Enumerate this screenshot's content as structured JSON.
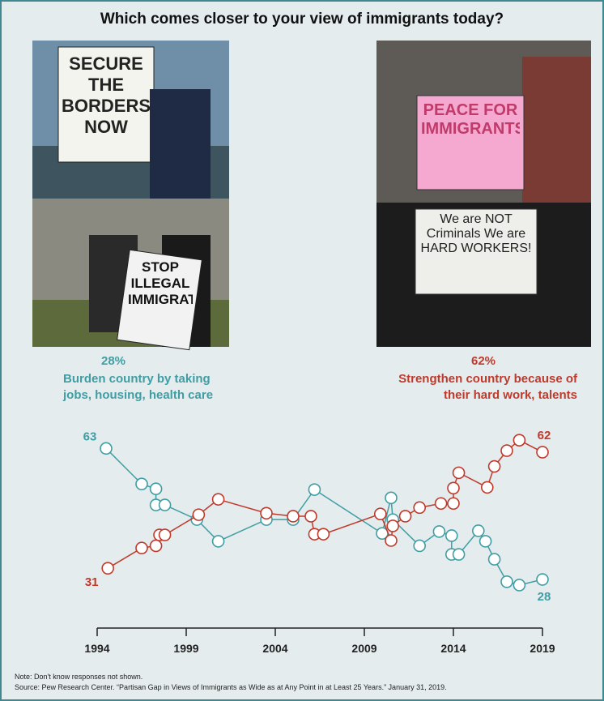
{
  "chart_data": {
    "type": "line",
    "title": "Which comes closer to your view of immigrants today?",
    "photo_signs": [
      "SECURE THE BORDERS NOW",
      "STOP ILLEGAL IMMIGRATION",
      "PEACE FOR IMMIGRANTS",
      "We are NOT Criminals We are HARD WORKERS!"
    ],
    "xlim": [
      1994,
      2019
    ],
    "xticks": [
      1994,
      1999,
      2004,
      2009,
      2014,
      2019
    ],
    "ylim": [
      20,
      70
    ],
    "series": [
      {
        "name": "Burden country by taking jobs, housing, health care",
        "share_label": "28%",
        "color": "#3f9ea3",
        "x": [
          1994.5,
          1996.5,
          1997.3,
          1997.3,
          1997.8,
          1999.6,
          2000.8,
          2003.5,
          2005.0,
          2006.2,
          2010.0,
          2010.5,
          2010.6,
          2012.1,
          2013.2,
          2013.9,
          2013.9,
          2014.3,
          2015.4,
          2015.8,
          2016.3,
          2017.0,
          2017.7,
          2019.0
        ],
        "values": [
          63,
          53.5,
          52.2,
          47.9,
          47.9,
          44,
          38.2,
          44,
          44,
          52,
          40.3,
          49.8,
          44,
          37,
          40.8,
          39.7,
          34.7,
          34.7,
          41,
          38.2,
          33.4,
          27.4,
          26.5,
          28
        ]
      },
      {
        "name": "Strengthen country because of their hard work, talents",
        "share_label": "62%",
        "color": "#c0392b",
        "x": [
          1994.6,
          1996.5,
          1997.3,
          1997.5,
          1997.8,
          1999.7,
          2000.8,
          2003.5,
          2005.0,
          2006.0,
          2006.2,
          2006.7,
          2009.9,
          2010.5,
          2010.6,
          2011.3,
          2012.1,
          2013.3,
          2014.0,
          2014.0,
          2014.3,
          2015.9,
          2016.3,
          2017.0,
          2017.7,
          2019.0
        ],
        "values": [
          31,
          36.4,
          37,
          39.9,
          39.9,
          45.3,
          49.4,
          45.7,
          44.9,
          44.9,
          40.1,
          40.1,
          45.5,
          38.4,
          42.3,
          44.9,
          47.2,
          48.3,
          48.3,
          52.4,
          56.5,
          52.6,
          58.2,
          62.4,
          65.2,
          62
        ]
      }
    ],
    "note": "Note: Don't know responses not shown.",
    "source": "Source: Pew Research Center. “Partisan Gap in Views of Immigrants as Wide as at Any Point in at Least 25 Years.” January 31, 2019."
  }
}
